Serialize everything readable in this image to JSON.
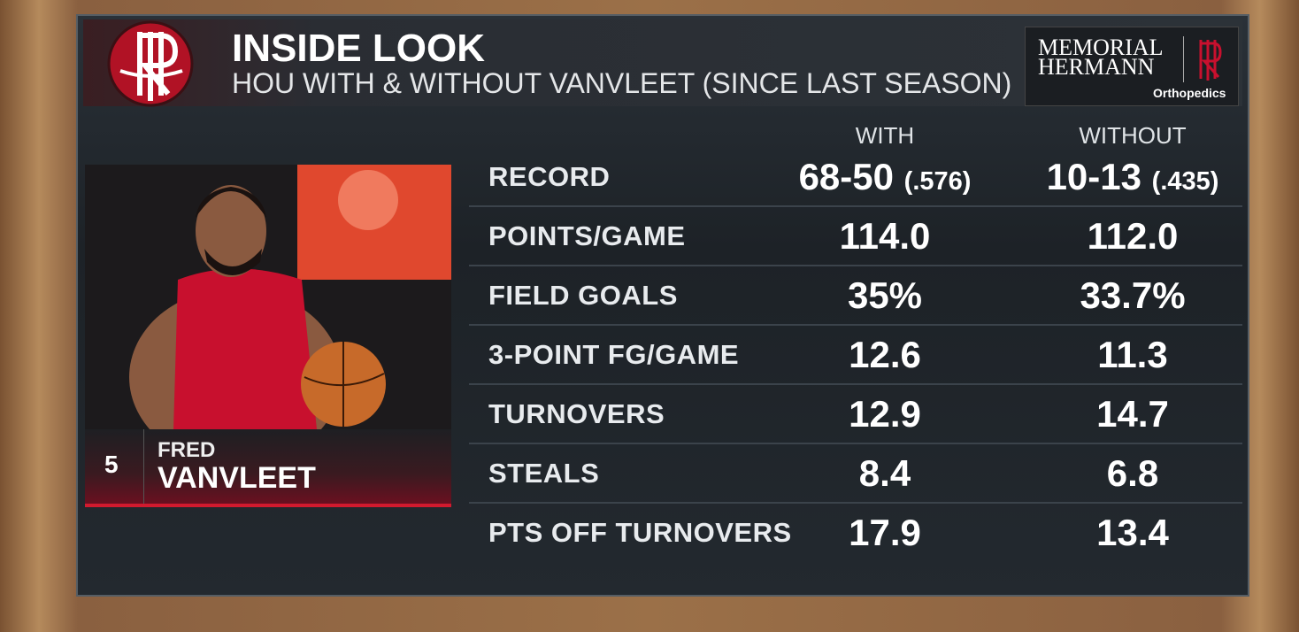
{
  "header": {
    "title": "INSIDE LOOK",
    "subtitle": "HOU WITH & WITHOUT VANVLEET (SINCE LAST SEASON)"
  },
  "sponsor": {
    "line1": "MEMORIAL",
    "line2": "HERMANN",
    "line3": "Orthopedics"
  },
  "player": {
    "number": "5",
    "first_name": "FRED",
    "last_name": "VANVLEET"
  },
  "table": {
    "columns": [
      "WITH",
      "WITHOUT"
    ],
    "rows": [
      {
        "label": "RECORD",
        "with": "68-50",
        "with_pct": "(.576)",
        "without": "10-13",
        "without_pct": "(.435)"
      },
      {
        "label": "POINTS/GAME",
        "with": "114.0",
        "without": "112.0"
      },
      {
        "label": "FIELD GOALS",
        "with": "35%",
        "without": "33.7%"
      },
      {
        "label": "3-POINT FG/GAME",
        "with": "12.6",
        "without": "11.3"
      },
      {
        "label": "TURNOVERS",
        "with": "12.9",
        "without": "14.7"
      },
      {
        "label": "STEALS",
        "with": "8.4",
        "without": "6.8"
      },
      {
        "label": "PTS OFF TURNOVERS",
        "with": "17.9",
        "without": "13.4"
      }
    ]
  }
}
